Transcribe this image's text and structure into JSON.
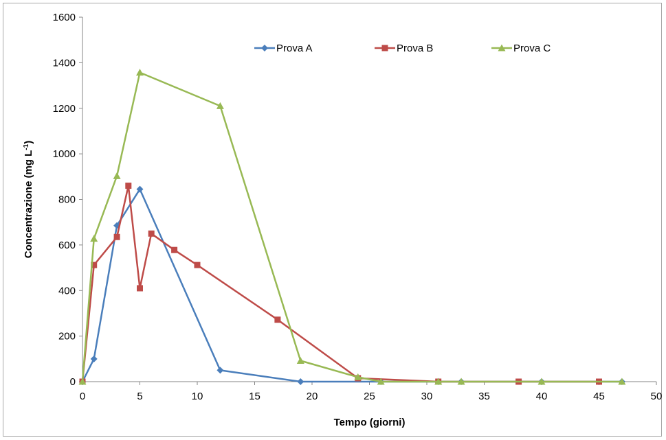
{
  "chart_data": {
    "type": "line",
    "xlabel": "Tempo (giorni)",
    "ylabel": "Concentrazione (mg L",
    "ylabel_sup": "-1",
    "ylabel_suffix": ")",
    "xlim": [
      0,
      50
    ],
    "ylim": [
      0,
      1600
    ],
    "x_ticks": [
      0,
      5,
      10,
      15,
      20,
      25,
      30,
      35,
      40,
      45,
      50
    ],
    "y_ticks": [
      0,
      200,
      400,
      600,
      800,
      1000,
      1200,
      1400,
      1600
    ],
    "grid": false,
    "legend_position": "top",
    "series": [
      {
        "name": "Prova A",
        "color": "#4a7ebb",
        "marker": "diamond",
        "points": [
          [
            0,
            0
          ],
          [
            1,
            100
          ],
          [
            3,
            685
          ],
          [
            5,
            845
          ],
          [
            12,
            50
          ],
          [
            19,
            0
          ],
          [
            26,
            0
          ],
          [
            31,
            0
          ],
          [
            33,
            0
          ],
          [
            40,
            0
          ],
          [
            47,
            0
          ]
        ]
      },
      {
        "name": "Prova B",
        "color": "#be4b48",
        "marker": "square",
        "points": [
          [
            0,
            0
          ],
          [
            1,
            512
          ],
          [
            3,
            635
          ],
          [
            4,
            860
          ],
          [
            5,
            410
          ],
          [
            6,
            650
          ],
          [
            8,
            578
          ],
          [
            10,
            512
          ],
          [
            17,
            272
          ],
          [
            24,
            15
          ],
          [
            31,
            0
          ],
          [
            38,
            0
          ],
          [
            45,
            0
          ]
        ]
      },
      {
        "name": "Prova C",
        "color": "#98b954",
        "marker": "triangle",
        "points": [
          [
            0,
            0
          ],
          [
            1,
            628
          ],
          [
            3,
            903
          ],
          [
            5,
            1357
          ],
          [
            12,
            1210
          ],
          [
            19,
            92
          ],
          [
            24,
            20
          ],
          [
            26,
            0
          ],
          [
            31,
            0
          ],
          [
            33,
            0
          ],
          [
            40,
            0
          ],
          [
            47,
            0
          ]
        ]
      }
    ]
  }
}
